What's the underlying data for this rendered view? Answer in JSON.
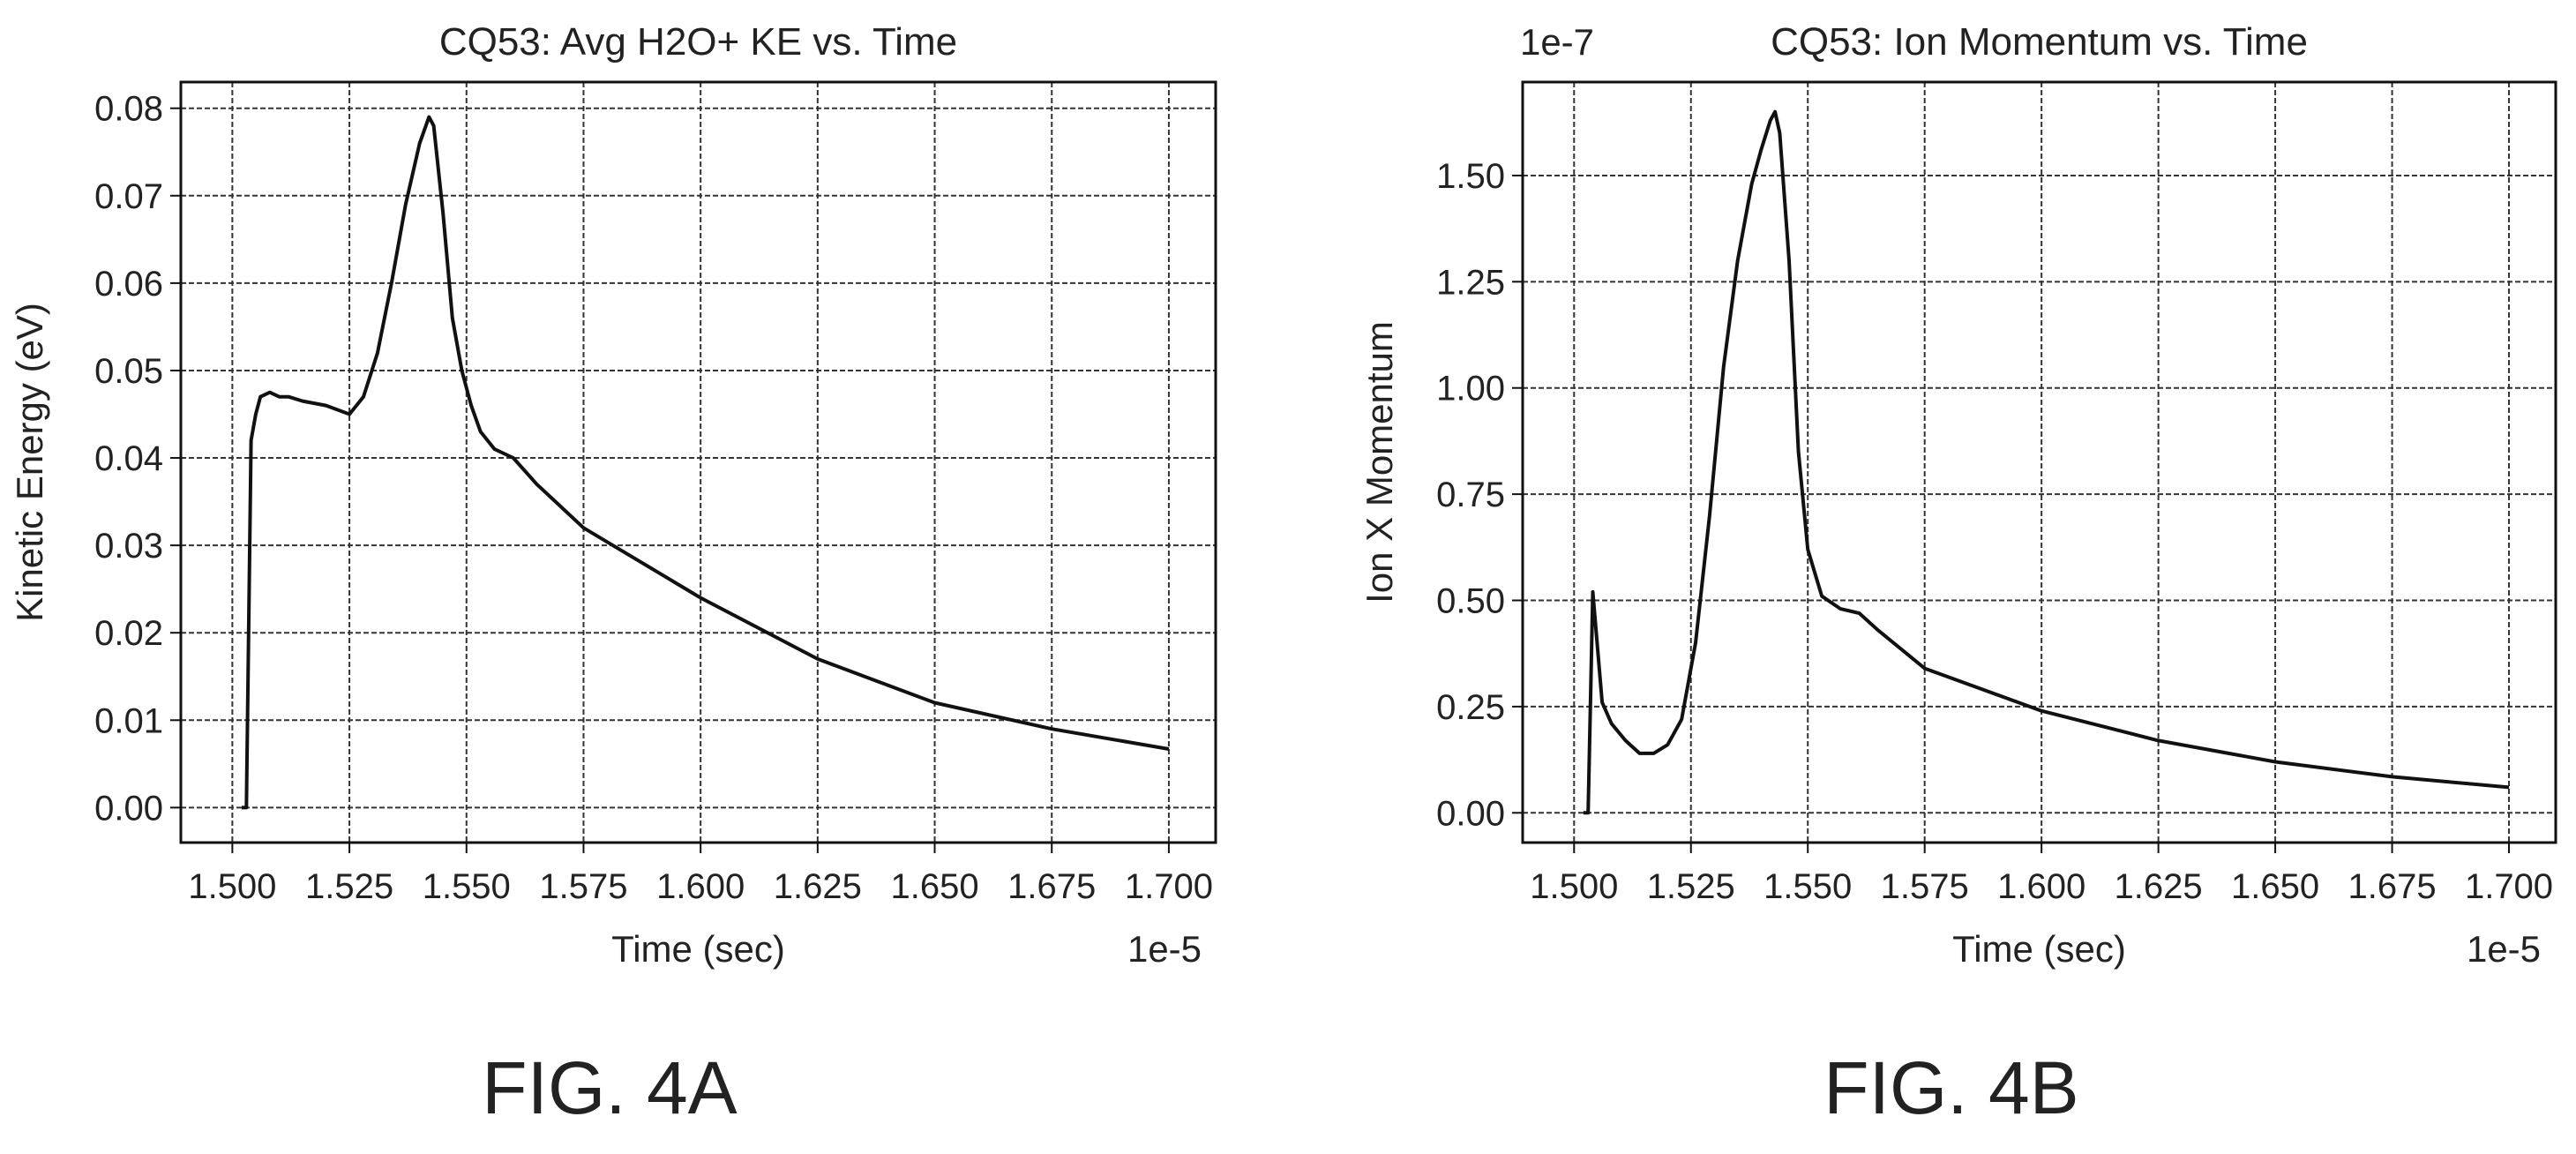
{
  "chart_data": [
    {
      "type": "line",
      "title": "CQ53: Avg H2O+ KE vs. Time",
      "xlabel": "Time (sec)",
      "ylabel": "Kinetic Energy (eV)",
      "x_multiplier": "1e-5",
      "y_multiplier": "",
      "xlim": [
        1.489,
        1.71
      ],
      "ylim": [
        -0.004,
        0.083
      ],
      "xticks": [
        "1.500",
        "1.525",
        "1.550",
        "1.575",
        "1.600",
        "1.625",
        "1.650",
        "1.675",
        "1.700"
      ],
      "yticks": [
        "0.00",
        "0.01",
        "0.02",
        "0.03",
        "0.04",
        "0.05",
        "0.06",
        "0.07",
        "0.08"
      ],
      "grid": true,
      "figure_label": "FIG. 4A",
      "series": [
        {
          "x": [
            1.502,
            1.503,
            1.504,
            1.505,
            1.506,
            1.508,
            1.51,
            1.512,
            1.515,
            1.52,
            1.525,
            1.528,
            1.531,
            1.534,
            1.537,
            1.54,
            1.542,
            1.543,
            1.545,
            1.547,
            1.549,
            1.551,
            1.553,
            1.556,
            1.56,
            1.565,
            1.575,
            1.6,
            1.625,
            1.65,
            1.675,
            1.7
          ],
          "y": [
            0.0,
            0.0,
            0.042,
            0.045,
            0.047,
            0.0475,
            0.047,
            0.047,
            0.0465,
            0.046,
            0.045,
            0.047,
            0.052,
            0.06,
            0.069,
            0.076,
            0.079,
            0.078,
            0.068,
            0.056,
            0.05,
            0.046,
            0.043,
            0.041,
            0.04,
            0.037,
            0.032,
            0.024,
            0.017,
            0.012,
            0.009,
            0.0067
          ]
        }
      ]
    },
    {
      "type": "line",
      "title": "CQ53: Ion Momentum vs. Time",
      "xlabel": "Time (sec)",
      "ylabel": "Ion X Momentum",
      "x_multiplier": "1e-5",
      "y_multiplier": "1e-7",
      "xlim": [
        1.489,
        1.71
      ],
      "ylim": [
        -0.07,
        1.72
      ],
      "xticks": [
        "1.500",
        "1.525",
        "1.550",
        "1.575",
        "1.600",
        "1.625",
        "1.650",
        "1.675",
        "1.700"
      ],
      "yticks": [
        "0.00",
        "0.25",
        "0.50",
        "0.75",
        "1.00",
        "1.25",
        "1.50"
      ],
      "grid": true,
      "figure_label": "FIG. 4B",
      "series": [
        {
          "x": [
            1.502,
            1.503,
            1.504,
            1.506,
            1.508,
            1.511,
            1.514,
            1.517,
            1.52,
            1.523,
            1.526,
            1.529,
            1.532,
            1.535,
            1.538,
            1.54,
            1.542,
            1.543,
            1.544,
            1.546,
            1.548,
            1.55,
            1.553,
            1.557,
            1.561,
            1.565,
            1.575,
            1.6,
            1.625,
            1.65,
            1.675,
            1.7
          ],
          "y": [
            0.0,
            0.0,
            0.52,
            0.26,
            0.21,
            0.17,
            0.14,
            0.14,
            0.16,
            0.22,
            0.4,
            0.7,
            1.05,
            1.3,
            1.48,
            1.56,
            1.63,
            1.65,
            1.6,
            1.3,
            0.85,
            0.62,
            0.51,
            0.48,
            0.47,
            0.43,
            0.34,
            0.24,
            0.17,
            0.12,
            0.085,
            0.06
          ]
        }
      ]
    }
  ]
}
